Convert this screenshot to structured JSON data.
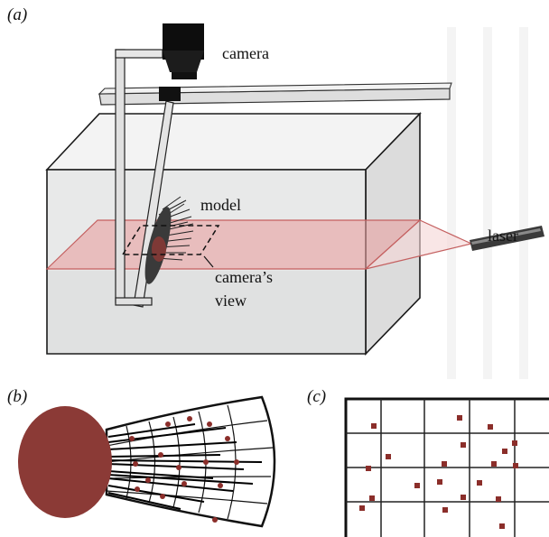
{
  "panels": {
    "a": {
      "label": "(a)"
    },
    "b": {
      "label": "(b)"
    },
    "c": {
      "label": "(c)"
    }
  },
  "annotations": {
    "camera": "camera",
    "model": "model",
    "laser": "laser",
    "cameras_view_line1": "camera’s",
    "cameras_view_line2": "view"
  },
  "colors": {
    "laser_sheet": "#e8a0a0",
    "laser_edge": "#c46060",
    "particle": "#8b2e2a",
    "model_disc": "#8b3a36",
    "tank_glass": "#e9eaea",
    "tank_edge": "#1a1a1a",
    "camera_body": "#0d0d0d",
    "grid_line": "#222222"
  }
}
